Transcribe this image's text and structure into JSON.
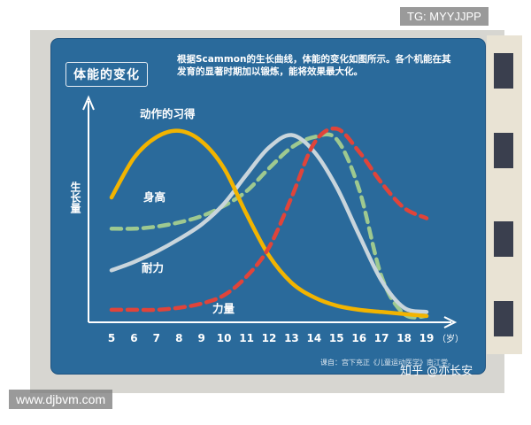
{
  "chart_data": {
    "type": "line",
    "title": "体能的变化",
    "description": "根据Scammon的生长曲线，体能的变化如图所示。各个机能在其发育的显著时期加以锻炼，能将效果最大化。",
    "ylabel": "生长量",
    "xlabel": "",
    "x_unit": "（岁）",
    "x": [
      5,
      6,
      7,
      8,
      9,
      10,
      11,
      12,
      13,
      14,
      15,
      16,
      17,
      18,
      19
    ],
    "ylim": [
      0,
      100
    ],
    "xlim": [
      5,
      19
    ],
    "grid": false,
    "source": "课自：宫下充正《儿童运动医学》南江堂。",
    "series": [
      {
        "name": "动作的习得",
        "style": "solid",
        "color": "#f2b400",
        "values": [
          60,
          79,
          89,
          92,
          87,
          74,
          52,
          32,
          19,
          12,
          8,
          6,
          5,
          4,
          3
        ]
      },
      {
        "name": "身高",
        "style": "dashed",
        "color": "#9ec990",
        "values": [
          45,
          45,
          46,
          48,
          51,
          56,
          63,
          74,
          84,
          89,
          88,
          64,
          22,
          4,
          3
        ]
      },
      {
        "name": "耐力",
        "style": "solid",
        "color": "#c9d5dc",
        "values": [
          25,
          29,
          34,
          40,
          47,
          57,
          71,
          84,
          90,
          82,
          65,
          42,
          20,
          7,
          5
        ]
      },
      {
        "name": "力量",
        "style": "dashed",
        "color": "#e0443a",
        "values": [
          6,
          6,
          6,
          7,
          9,
          13,
          22,
          36,
          60,
          86,
          93,
          82,
          67,
          55,
          50
        ]
      }
    ]
  },
  "watermarks": {
    "tg": "TG: MYYJJPP",
    "site": "www.djbvm.com",
    "zhihu": "知乎 @亦长安"
  }
}
